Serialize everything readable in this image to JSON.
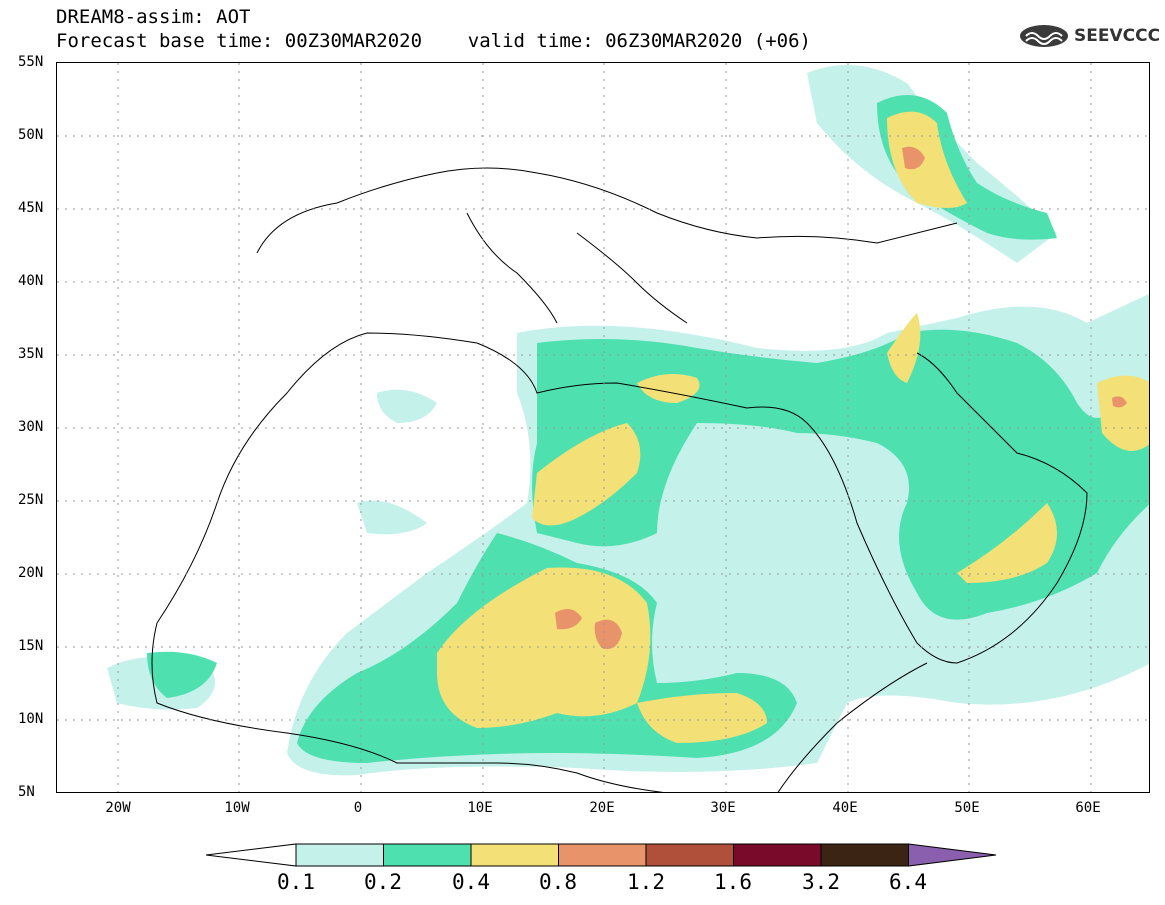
{
  "header": {
    "title_line1": "DREAM8-assim: AOT",
    "title_line2": "Forecast base time: 00Z30MAR2020    valid time: 06Z30MAR2020 (+06)",
    "logo_text": "SEEVCCC"
  },
  "map": {
    "region": "North Africa, Europe and Middle East",
    "lon_range": [
      -25,
      65
    ],
    "lat_range": [
      5,
      55
    ],
    "lat_ticks": [
      "55N",
      "50N",
      "45N",
      "40N",
      "35N",
      "30N",
      "25N",
      "20N",
      "15N",
      "10N",
      "5N"
    ],
    "lon_ticks": [
      "20W",
      "10W",
      "0",
      "10E",
      "20E",
      "30E",
      "40E",
      "50E",
      "60E"
    ],
    "grid": "dotted"
  },
  "legend": {
    "labels": [
      "0.1",
      "0.2",
      "0.4",
      "0.8",
      "1.2",
      "1.6",
      "3.2",
      "6.4"
    ],
    "colors": [
      "#c4f1ea",
      "#4fe0b0",
      "#f3e077",
      "#e8936a",
      "#b0503a",
      "#7a0a2a",
      "#3c2414",
      "#8a5fae"
    ]
  }
}
